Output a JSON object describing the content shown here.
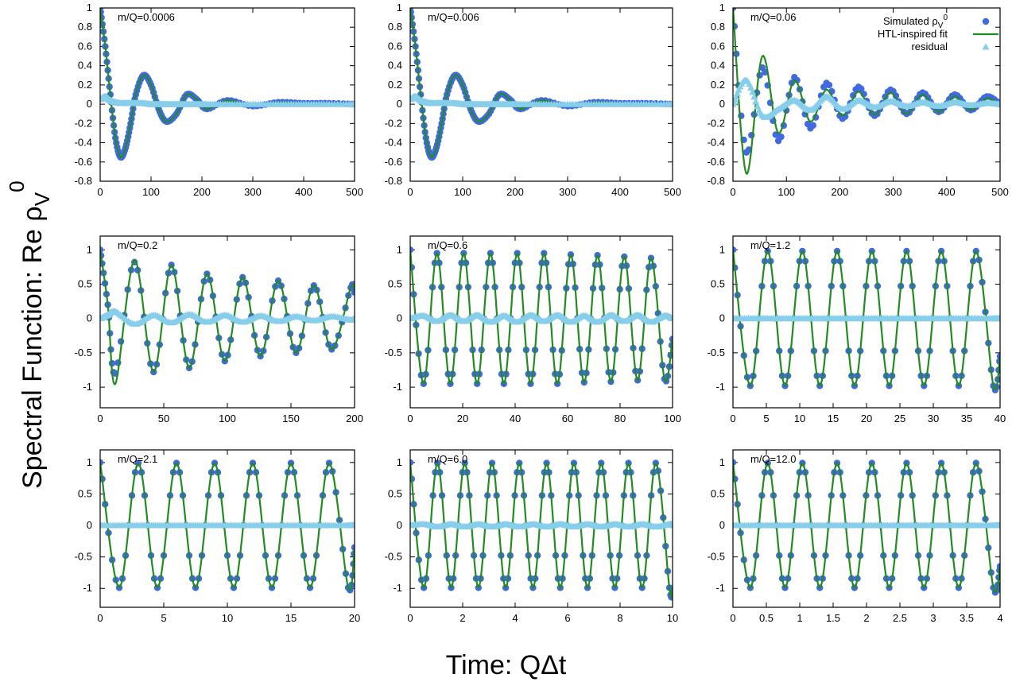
{
  "figure": {
    "ylabel_main": "Spectral Function: Re ρ",
    "ylabel_sub": "V",
    "ylabel_sup": "0",
    "xlabel": "Time: QΔt"
  },
  "legend": {
    "placement": "top-right of panel 3",
    "entries": [
      {
        "label": "Simulated ρ",
        "label_sub": "V",
        "label_sup": "0",
        "marker": "circle",
        "color": "#4169e1"
      },
      {
        "label": "HTL-inspired fit",
        "marker": "line",
        "color": "#228b22"
      },
      {
        "label": "residual",
        "marker": "triangle",
        "color": "#87ceeb"
      }
    ]
  },
  "colors": {
    "simulated": "#4169e1",
    "fit": "#228b22",
    "residual": "#87ceeb",
    "frame": "#000000"
  },
  "chart_data": [
    {
      "type": "line",
      "title": "m/Q=0.0006",
      "xlim": [
        0,
        500
      ],
      "ylim": [
        -0.8,
        1
      ],
      "xticks": [
        0,
        100,
        200,
        300,
        400,
        500
      ],
      "yticks": [
        -0.8,
        -0.6,
        -0.4,
        -0.2,
        0,
        0.2,
        0.4,
        0.6,
        0.8,
        1
      ],
      "x": [
        0,
        10,
        20,
        30,
        40,
        50,
        60,
        70,
        85,
        100,
        115,
        130,
        150,
        170,
        190,
        210,
        250,
        300,
        350,
        400,
        450,
        500
      ],
      "series": [
        {
          "name": "Simulated ρV0",
          "values": [
            1,
            0.6,
            0.1,
            -0.35,
            -0.55,
            -0.45,
            -0.2,
            0.1,
            0.3,
            0.2,
            -0.05,
            -0.18,
            -0.1,
            0.1,
            0.05,
            -0.05,
            0.04,
            -0.02,
            0.02,
            0.01,
            0.01,
            0
          ]
        },
        {
          "name": "HTL-inspired fit",
          "values": [
            1,
            0.6,
            0.1,
            -0.35,
            -0.55,
            -0.45,
            -0.2,
            0.1,
            0.3,
            0.2,
            -0.05,
            -0.18,
            -0.1,
            0.1,
            0.05,
            -0.05,
            0.04,
            -0.02,
            0.02,
            0.01,
            0.01,
            0
          ]
        },
        {
          "name": "residual",
          "values": [
            0.05,
            0.08,
            0.04,
            0.02,
            0.01,
            0.01,
            0.01,
            0.01,
            0.01,
            0,
            0,
            0,
            0,
            0,
            0,
            0,
            0,
            0,
            0,
            0,
            0,
            0
          ]
        }
      ]
    },
    {
      "type": "line",
      "title": "m/Q=0.006",
      "xlim": [
        0,
        500
      ],
      "ylim": [
        -0.8,
        1
      ],
      "xticks": [
        0,
        100,
        200,
        300,
        400,
        500
      ],
      "yticks": [
        -0.8,
        -0.6,
        -0.4,
        -0.2,
        0,
        0.2,
        0.4,
        0.6,
        0.8,
        1
      ],
      "x": [
        0,
        10,
        20,
        30,
        40,
        50,
        60,
        70,
        85,
        100,
        115,
        130,
        150,
        170,
        190,
        210,
        250,
        300,
        350,
        400,
        450,
        500
      ],
      "series": [
        {
          "name": "Simulated ρV0",
          "values": [
            1,
            0.6,
            0.1,
            -0.35,
            -0.55,
            -0.45,
            -0.2,
            0.1,
            0.3,
            0.2,
            -0.05,
            -0.18,
            -0.1,
            0.1,
            0.05,
            -0.05,
            0.04,
            -0.02,
            0.02,
            0.01,
            0.01,
            0
          ]
        },
        {
          "name": "HTL-inspired fit",
          "values": [
            1,
            0.6,
            0.1,
            -0.35,
            -0.55,
            -0.45,
            -0.2,
            0.1,
            0.3,
            0.2,
            -0.05,
            -0.18,
            -0.1,
            0.1,
            0.05,
            -0.05,
            0.04,
            -0.02,
            0.02,
            0.01,
            0.01,
            0
          ]
        },
        {
          "name": "residual",
          "values": [
            0.05,
            0.08,
            0.04,
            0.02,
            0.01,
            0.01,
            0.01,
            0.01,
            0.01,
            0,
            0,
            0,
            0,
            0,
            0,
            0,
            0,
            0,
            0,
            0,
            0,
            0
          ]
        }
      ]
    },
    {
      "type": "line",
      "title": "m/Q=0.06",
      "xlim": [
        0,
        500
      ],
      "ylim": [
        -0.8,
        1
      ],
      "xticks": [
        0,
        100,
        200,
        300,
        400,
        500
      ],
      "yticks": [
        -0.8,
        -0.6,
        -0.4,
        -0.2,
        0,
        0.2,
        0.4,
        0.6,
        0.8,
        1
      ],
      "x": [
        0,
        25,
        55,
        85,
        115,
        145,
        175,
        205,
        235,
        265,
        295,
        325,
        355,
        385,
        415,
        445,
        475,
        500
      ],
      "series": [
        {
          "name": "Simulated ρV0",
          "values": [
            1,
            -0.5,
            0.38,
            -0.38,
            0.28,
            -0.25,
            0.22,
            -0.15,
            0.18,
            -0.12,
            0.15,
            -0.1,
            0.12,
            -0.08,
            0.1,
            -0.06,
            0.08,
            0
          ]
        },
        {
          "name": "HTL-inspired fit",
          "values": [
            1,
            -0.72,
            0.5,
            -0.3,
            0.25,
            -0.18,
            0.15,
            -0.12,
            0.13,
            -0.11,
            0.12,
            -0.1,
            0.1,
            -0.08,
            0.08,
            -0.06,
            0.06,
            0
          ]
        },
        {
          "name": "residual",
          "values": [
            0,
            0.25,
            -0.12,
            -0.05,
            0.04,
            -0.06,
            0.08,
            -0.05,
            0.04,
            -0.03,
            0.03,
            -0.02,
            0.02,
            -0.02,
            0.02,
            -0.01,
            0.01,
            0
          ]
        }
      ]
    },
    {
      "type": "line",
      "title": "m/Q=0.2",
      "xlim": [
        0,
        200
      ],
      "ylim": [
        -1.3,
        1.2
      ],
      "xticks": [
        0,
        50,
        100,
        150,
        200
      ],
      "yticks": [
        -1,
        -0.5,
        0,
        0.5,
        1
      ],
      "x": [
        0,
        6,
        12,
        27,
        42,
        56,
        70,
        84,
        98,
        112,
        126,
        140,
        154,
        168,
        182,
        197,
        200
      ],
      "series": [
        {
          "name": "Simulated ρV0",
          "values": [
            1,
            0.2,
            -0.8,
            0.82,
            -0.78,
            0.78,
            -0.72,
            0.65,
            -0.62,
            0.6,
            -0.55,
            0.55,
            -0.5,
            0.48,
            -0.45,
            0.45,
            0.38
          ]
        },
        {
          "name": "HTL-inspired fit",
          "values": [
            1,
            0.2,
            -0.95,
            0.85,
            -0.78,
            0.78,
            -0.72,
            0.65,
            -0.62,
            0.6,
            -0.55,
            0.55,
            -0.5,
            0.48,
            -0.45,
            0.45,
            0.38
          ]
        },
        {
          "name": "residual",
          "values": [
            0,
            0.05,
            0.1,
            -0.08,
            0.05,
            -0.06,
            0.06,
            -0.05,
            0.05,
            -0.05,
            0.04,
            -0.04,
            0.03,
            -0.03,
            0.03,
            -0.02,
            0
          ]
        }
      ]
    },
    {
      "type": "line",
      "title": "m/Q=0.6",
      "xlim": [
        0,
        100
      ],
      "ylim": [
        -1.3,
        1.2
      ],
      "xticks": [
        0,
        20,
        40,
        60,
        80,
        100
      ],
      "yticks": [
        -1,
        -0.5,
        0,
        0.5,
        1
      ],
      "x": [
        0,
        5.1,
        10.2,
        15.3,
        20.4,
        25.5,
        30.6,
        35.7,
        40.8,
        45.9,
        51,
        56.1,
        61.2,
        66.3,
        71.4,
        76.5,
        81.6,
        86.7,
        91.8,
        96.9,
        100
      ],
      "series": [
        {
          "name": "Simulated ρV0",
          "values": [
            1,
            -0.95,
            0.95,
            -0.95,
            0.95,
            -0.95,
            0.95,
            -0.95,
            0.95,
            -0.95,
            0.95,
            -0.95,
            0.93,
            -0.93,
            0.92,
            -0.92,
            0.9,
            -0.9,
            0.88,
            -0.88,
            -0.3
          ]
        },
        {
          "name": "HTL-inspired fit",
          "values": [
            1,
            -0.95,
            0.95,
            -0.95,
            0.95,
            -0.95,
            0.95,
            -0.95,
            0.95,
            -0.95,
            0.95,
            -0.95,
            0.93,
            -0.93,
            0.92,
            -0.92,
            0.9,
            -0.9,
            0.88,
            -0.88,
            -0.3
          ]
        },
        {
          "name": "residual",
          "values": [
            0,
            0.04,
            -0.04,
            0.05,
            -0.04,
            0.05,
            -0.05,
            0.04,
            -0.05,
            0.05,
            -0.04,
            0.05,
            -0.05,
            0.04,
            -0.05,
            0.05,
            -0.04,
            0.05,
            -0.05,
            0.04,
            0
          ]
        }
      ]
    },
    {
      "type": "line",
      "title": "m/Q=1.2",
      "xlim": [
        0,
        40
      ],
      "ylim": [
        -1.3,
        1.2
      ],
      "xticks": [
        0,
        5,
        10,
        15,
        20,
        25,
        30,
        35,
        40
      ],
      "yticks": [
        -1,
        -0.5,
        0,
        0.5,
        1
      ],
      "x": [
        0,
        2.6,
        5.2,
        7.8,
        10.4,
        13,
        15.6,
        18.2,
        20.8,
        23.4,
        26,
        28.6,
        31.2,
        33.8,
        36.4,
        39,
        40
      ],
      "series": [
        {
          "name": "Simulated ρV0",
          "values": [
            1,
            -0.98,
            0.98,
            -0.98,
            0.98,
            -0.98,
            0.98,
            -0.98,
            0.98,
            -0.98,
            0.98,
            -0.98,
            0.98,
            -0.98,
            0.98,
            -0.98,
            -0.55
          ]
        },
        {
          "name": "HTL-inspired fit",
          "values": [
            1,
            -0.98,
            0.98,
            -0.98,
            0.98,
            -0.98,
            0.98,
            -0.98,
            0.98,
            -0.98,
            0.98,
            -0.98,
            0.98,
            -0.98,
            0.98,
            -0.98,
            -0.55
          ]
        },
        {
          "name": "residual",
          "values": [
            0,
            0,
            0,
            0,
            0,
            0,
            0,
            0,
            0,
            0,
            0,
            0,
            0,
            0,
            0,
            0,
            0
          ]
        }
      ]
    },
    {
      "type": "line",
      "title": "m/Q=2.1",
      "xlim": [
        0,
        20
      ],
      "ylim": [
        -1.3,
        1.2
      ],
      "xticks": [
        0,
        5,
        10,
        15,
        20
      ],
      "yticks": [
        -1,
        -0.5,
        0,
        0.5,
        1
      ],
      "x": [
        0,
        1.5,
        3,
        4.5,
        6,
        7.5,
        9,
        10.5,
        12,
        13.5,
        15,
        16.5,
        18,
        19.5,
        20
      ],
      "series": [
        {
          "name": "Simulated ρV0",
          "values": [
            1,
            -0.99,
            0.99,
            -0.99,
            0.99,
            -0.99,
            0.99,
            -0.99,
            0.99,
            -0.99,
            0.99,
            -0.99,
            0.99,
            -0.99,
            -0.35
          ]
        },
        {
          "name": "HTL-inspired fit",
          "values": [
            1,
            -0.99,
            0.99,
            -0.99,
            0.99,
            -0.99,
            0.99,
            -0.99,
            0.99,
            -0.99,
            0.99,
            -0.99,
            0.99,
            -0.99,
            -0.35
          ]
        },
        {
          "name": "residual",
          "values": [
            0,
            0,
            0,
            0,
            0,
            0,
            0,
            0,
            0,
            0,
            0,
            0,
            0,
            0,
            0
          ]
        }
      ]
    },
    {
      "type": "line",
      "title": "m/Q=6.0",
      "xlim": [
        0,
        10
      ],
      "ylim": [
        -1.3,
        1.2
      ],
      "xticks": [
        0,
        2,
        4,
        6,
        8,
        10
      ],
      "yticks": [
        -1,
        -0.5,
        0,
        0.5,
        1
      ],
      "x": [
        0,
        0.52,
        1.04,
        1.56,
        2.08,
        2.6,
        3.12,
        3.64,
        4.16,
        4.68,
        5.2,
        5.72,
        6.24,
        6.76,
        7.28,
        7.8,
        8.32,
        8.84,
        9.36,
        9.88,
        10
      ],
      "series": [
        {
          "name": "Simulated ρV0",
          "values": [
            1,
            -0.99,
            0.99,
            -0.99,
            0.99,
            -0.99,
            0.99,
            -0.99,
            0.99,
            -0.99,
            0.99,
            -0.99,
            0.99,
            -0.99,
            0.99,
            -0.99,
            0.99,
            -0.99,
            0.99,
            -0.99,
            -1
          ]
        },
        {
          "name": "HTL-inspired fit",
          "values": [
            1,
            -0.99,
            0.99,
            -0.99,
            0.99,
            -0.99,
            0.99,
            -0.99,
            0.99,
            -0.99,
            0.99,
            -0.99,
            0.99,
            -0.99,
            0.99,
            -0.99,
            0.99,
            -0.99,
            0.99,
            -0.99,
            -1
          ]
        },
        {
          "name": "residual",
          "values": [
            0,
            0.02,
            -0.02,
            0.02,
            -0.02,
            0.02,
            -0.02,
            0.02,
            -0.02,
            0.02,
            -0.02,
            0.02,
            -0.02,
            0.02,
            -0.02,
            0.02,
            -0.02,
            0.02,
            -0.02,
            0.02,
            0
          ]
        }
      ]
    },
    {
      "type": "line",
      "title": "m/Q=12.0",
      "xlim": [
        0,
        4
      ],
      "ylim": [
        -1.3,
        1.2
      ],
      "xticks": [
        0,
        0.5,
        1,
        1.5,
        2,
        2.5,
        3,
        3.5,
        4
      ],
      "yticks": [
        -1,
        -0.5,
        0,
        0.5,
        1
      ],
      "x": [
        0,
        0.26,
        0.52,
        0.78,
        1.04,
        1.3,
        1.56,
        1.82,
        2.08,
        2.34,
        2.6,
        2.86,
        3.12,
        3.38,
        3.64,
        3.9,
        4
      ],
      "series": [
        {
          "name": "Simulated ρV0",
          "values": [
            1,
            -0.99,
            0.99,
            -0.99,
            0.99,
            -0.99,
            0.99,
            -0.99,
            0.99,
            -0.99,
            0.99,
            -0.99,
            0.99,
            -0.99,
            0.99,
            -0.99,
            -0.65
          ]
        },
        {
          "name": "HTL-inspired fit",
          "values": [
            1,
            -0.99,
            0.99,
            -0.99,
            0.99,
            -0.99,
            0.99,
            -0.99,
            0.99,
            -0.99,
            0.99,
            -0.99,
            0.99,
            -0.99,
            0.99,
            -0.99,
            -0.65
          ]
        },
        {
          "name": "residual",
          "values": [
            0,
            0,
            0,
            0,
            0,
            0,
            0,
            0,
            0,
            0,
            0,
            0,
            0,
            0,
            0,
            0,
            0
          ]
        }
      ]
    }
  ]
}
